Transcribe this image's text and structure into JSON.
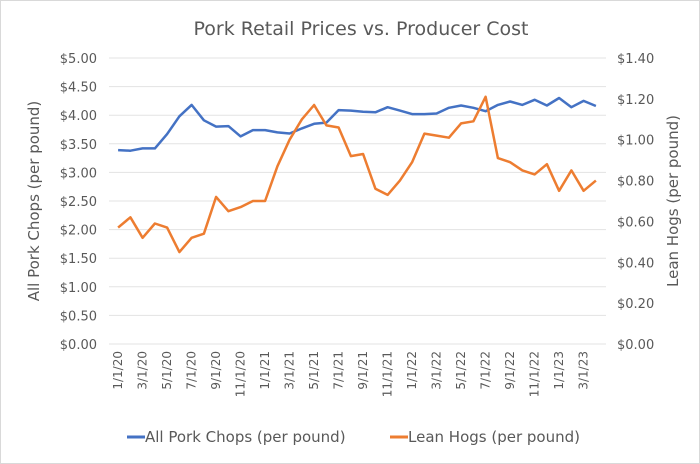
{
  "chart_data": {
    "type": "line",
    "title": "Pork Retail Prices vs. Producer Cost",
    "ylabel": "All Pork Chops (per pound)",
    "y2label": "Lean Hogs (per pound)",
    "ylim": [
      0,
      5
    ],
    "y2lim": [
      0,
      1.4
    ],
    "yticks": [
      "$0.00",
      "$0.50",
      "$1.00",
      "$1.50",
      "$2.00",
      "$2.50",
      "$3.00",
      "$3.50",
      "$4.00",
      "$4.50",
      "$5.00"
    ],
    "y2ticks": [
      "$0.00",
      "$0.20",
      "$0.40",
      "$0.60",
      "$0.80",
      "$1.00",
      "$1.20",
      "$1.40"
    ],
    "xtick_labels": [
      "1/1/20",
      "3/1/20",
      "5/1/20",
      "7/1/20",
      "9/1/20",
      "11/1/20",
      "1/1/21",
      "3/1/21",
      "5/1/21",
      "7/1/21",
      "9/1/21",
      "11/1/21",
      "1/1/22",
      "3/1/22",
      "5/1/22",
      "7/1/22",
      "9/1/22",
      "11/1/22",
      "1/1/23",
      "3/1/23"
    ],
    "x_start": "1/1/20",
    "x_frequency": "monthly",
    "grid": true,
    "legend": "bottom",
    "series": [
      {
        "name": "All Pork Chops (per pound)",
        "axis": "left",
        "color": "#4472C4",
        "values": [
          3.39,
          3.38,
          3.42,
          3.42,
          3.67,
          3.98,
          4.18,
          3.91,
          3.8,
          3.81,
          3.63,
          3.74,
          3.74,
          3.7,
          3.68,
          3.77,
          3.85,
          3.87,
          4.09,
          4.08,
          4.06,
          4.05,
          4.14,
          4.08,
          4.02,
          4.02,
          4.03,
          4.13,
          4.17,
          4.13,
          4.07,
          4.18,
          4.24,
          4.18,
          4.27,
          4.17,
          4.3,
          4.14,
          4.25,
          4.16
        ]
      },
      {
        "name": "Lean Hogs (per pound)",
        "axis": "right",
        "color": "#ED7D31",
        "values": [
          0.57,
          0.62,
          0.52,
          0.59,
          0.57,
          0.45,
          0.52,
          0.54,
          0.72,
          0.65,
          0.67,
          0.7,
          0.7,
          0.87,
          1.0,
          1.1,
          1.17,
          1.07,
          1.06,
          0.92,
          0.93,
          0.76,
          0.73,
          0.8,
          0.89,
          1.03,
          1.02,
          1.01,
          1.08,
          1.09,
          1.21,
          0.91,
          0.89,
          0.85,
          0.83,
          0.88,
          0.75,
          0.85,
          0.75,
          0.8
        ]
      }
    ]
  }
}
